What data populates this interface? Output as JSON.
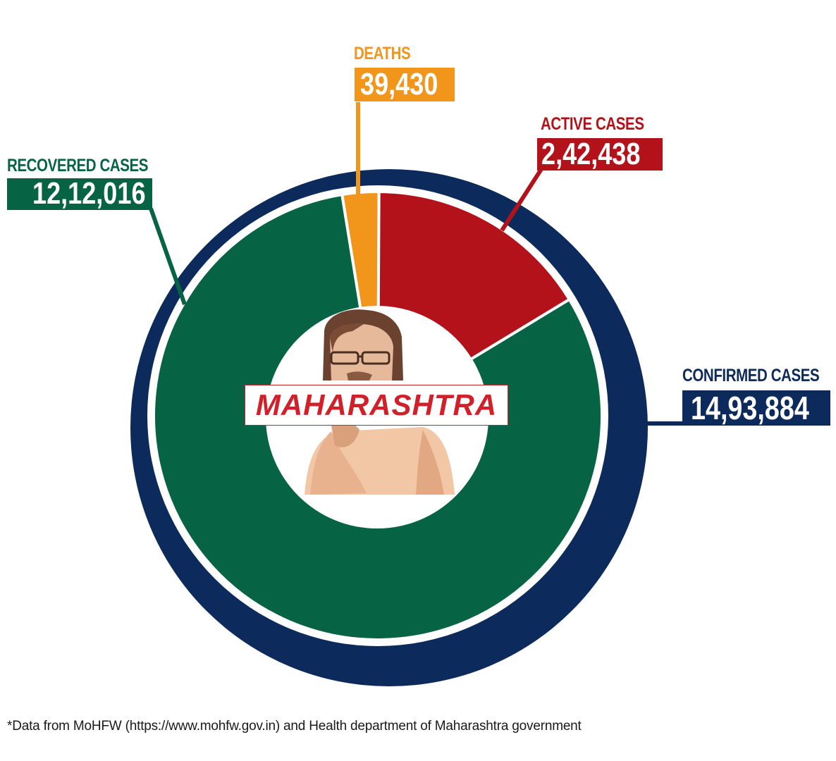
{
  "chart_data": {
    "type": "pie",
    "subtype": "donut-with-outer-ring",
    "title": "",
    "center_label": "MAHARASHTRA",
    "outer_ring": {
      "label": "CONFIRMED CASES",
      "value": 1493884,
      "display": "14,93,884",
      "color": "#0d2a5c"
    },
    "slices": [
      {
        "label": "RECOVERED CASES",
        "value": 1212016,
        "display": "12,12,016",
        "color": "#066343"
      },
      {
        "label": "DEATHS",
        "value": 39430,
        "display": "39,430",
        "color": "#f1951b"
      },
      {
        "label": "ACTIVE CASES",
        "value": 242438,
        "display": "2,42,438",
        "color": "#b4121a"
      }
    ],
    "footnote": "*Data from MoHFW (https://www.mohfw.gov.in) and Health department of Maharashtra government"
  },
  "labels": {
    "deaths": {
      "title": "DEATHS",
      "value": "39,430"
    },
    "active": {
      "title": "ACTIVE CASES",
      "value": "2,42,438"
    },
    "recovered": {
      "title": "RECOVERED CASES",
      "value": "12,12,016"
    },
    "confirmed": {
      "title": "CONFIRMED CASES",
      "value": "14,93,884"
    }
  },
  "center": {
    "state_name": "MAHARASHTRA",
    "portrait": "politician-portrait-illustration"
  },
  "colors": {
    "confirmed": "#0d2a5c",
    "recovered": "#066343",
    "deaths": "#f1951b",
    "active": "#b4121a",
    "state_name": "#d0202a"
  },
  "footnote": "*Data from MoHFW (https://www.mohfw.gov.in) and Health department of Maharashtra government"
}
